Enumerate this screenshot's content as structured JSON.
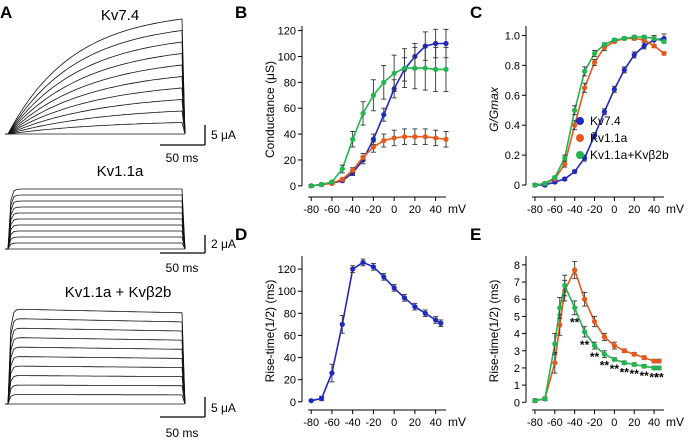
{
  "traces": {
    "A": {
      "label": "A",
      "title": "Kv7.4",
      "y_scale": "5 μA",
      "x_scale": "50 ms"
    },
    "A2": {
      "title": "Kv1.1a",
      "y_scale": "2 μA",
      "x_scale": "50 ms"
    },
    "A3": {
      "title": "Kv1.1a + Kvβ2b",
      "y_scale": "5 μA",
      "x_scale": "50 ms"
    }
  },
  "colors": {
    "Kv7.4": "#2028c0",
    "Kv1.1a": "#e8581a",
    "Kv1.1a+Kvb2b": "#22b550"
  },
  "chart_data": [
    {
      "panel": "B",
      "type": "line",
      "xlabel": "mV",
      "ylabel": "Conductance (μS)",
      "x": [
        -80,
        -70,
        -60,
        -50,
        -40,
        -30,
        -20,
        -10,
        0,
        10,
        20,
        30,
        40,
        50
      ],
      "xticks": [
        -80,
        -60,
        -40,
        -20,
        0,
        20,
        40
      ],
      "yticks": [
        0,
        20,
        40,
        60,
        80,
        100,
        120
      ],
      "xlim": [
        -85,
        50
      ],
      "ylim": [
        -4,
        122
      ],
      "series": [
        {
          "key": "Kv7.4",
          "values": [
            0,
            1,
            2,
            4,
            10,
            20,
            36,
            55,
            75,
            90,
            100,
            108,
            110,
            110
          ],
          "err": [
            1,
            1,
            1,
            1,
            2,
            3,
            4,
            5,
            7,
            9,
            10,
            11,
            11,
            11
          ]
        },
        {
          "key": "Kv1.1a",
          "values": [
            0,
            1,
            2,
            5,
            12,
            22,
            30,
            35,
            37,
            38,
            38,
            38,
            37,
            36
          ],
          "err": [
            1,
            1,
            1,
            1,
            2,
            3,
            4,
            5,
            6,
            6,
            6,
            6,
            6,
            6
          ]
        },
        {
          "key": "Kv1.1a+Kvb2b",
          "values": [
            0,
            1,
            3,
            13,
            36,
            56,
            70,
            80,
            87,
            91,
            91,
            91,
            90,
            90
          ],
          "err": [
            1,
            1,
            1,
            3,
            6,
            9,
            12,
            13,
            14,
            15,
            16,
            17,
            17,
            17
          ]
        }
      ]
    },
    {
      "panel": "C",
      "type": "line",
      "xlabel": "mV",
      "ylabel": "G/Gmax",
      "x": [
        -80,
        -70,
        -60,
        -50,
        -40,
        -30,
        -20,
        -10,
        0,
        10,
        20,
        30,
        40,
        50
      ],
      "xticks": [
        -80,
        -60,
        -40,
        -20,
        0,
        20,
        40
      ],
      "yticks": [
        0,
        0.2,
        0.4,
        0.6,
        0.8,
        1.0
      ],
      "ytick_labels": [
        "0",
        "0.2",
        "0.4",
        "0.6",
        "0.8",
        "1.0"
      ],
      "xlim": [
        -85,
        50
      ],
      "ylim": [
        -0.04,
        1.05
      ],
      "legend": [
        "Kv7.4",
        "Kv1.1a",
        "Kv1.1a+Kvβ2b"
      ],
      "series": [
        {
          "key": "Kv7.4",
          "values": [
            0,
            0,
            0.02,
            0.04,
            0.09,
            0.18,
            0.33,
            0.49,
            0.64,
            0.77,
            0.87,
            0.93,
            0.97,
            0.98
          ],
          "err": [
            0.01,
            0.01,
            0.01,
            0.01,
            0.01,
            0.02,
            0.02,
            0.02,
            0.02,
            0.02,
            0.02,
            0.02,
            0.03,
            0.03
          ]
        },
        {
          "key": "Kv1.1a",
          "values": [
            0,
            0.01,
            0.04,
            0.14,
            0.4,
            0.65,
            0.82,
            0.92,
            0.96,
            0.98,
            0.98,
            0.97,
            0.93,
            0.88
          ],
          "err": [
            0.01,
            0.01,
            0.01,
            0.02,
            0.03,
            0.03,
            0.02,
            0.02,
            0.01,
            0.01,
            0.01,
            0.01,
            0.01,
            0.01
          ]
        },
        {
          "key": "Kv1.1a+Kvb2b",
          "values": [
            0,
            0.01,
            0.05,
            0.18,
            0.5,
            0.76,
            0.88,
            0.94,
            0.97,
            0.98,
            0.99,
            0.99,
            0.98,
            0.96
          ],
          "err": [
            0.01,
            0.01,
            0.01,
            0.02,
            0.03,
            0.03,
            0.02,
            0.01,
            0.01,
            0.01,
            0.01,
            0.01,
            0.01,
            0.01
          ]
        }
      ]
    },
    {
      "panel": "D",
      "type": "line",
      "xlabel": "mV",
      "ylabel": "Rise-time(1/2) (ms)",
      "x": [
        -80,
        -70,
        -60,
        -50,
        -40,
        -30,
        -20,
        -10,
        0,
        10,
        20,
        30,
        40,
        45
      ],
      "xticks": [
        -80,
        -60,
        -40,
        -20,
        0,
        20,
        40
      ],
      "yticks": [
        0,
        20,
        40,
        60,
        80,
        100,
        120
      ],
      "xlim": [
        -85,
        50
      ],
      "ylim": [
        -2,
        130
      ],
      "series": [
        {
          "key": "Kv7.4",
          "values": [
            1,
            3,
            26,
            70,
            120,
            126,
            122,
            113,
            103,
            94,
            86,
            80,
            74,
            71
          ],
          "err": [
            1,
            2,
            8,
            8,
            3,
            3,
            3,
            3,
            3,
            3,
            3,
            3,
            3,
            3
          ]
        }
      ]
    },
    {
      "panel": "E",
      "type": "line",
      "xlabel": "mV",
      "ylabel": "Rise-time(1/2) (ms)",
      "x": [
        -80,
        -70,
        -60,
        -55,
        -50,
        -40,
        -30,
        -20,
        -10,
        0,
        10,
        20,
        30,
        40,
        45
      ],
      "xticks": [
        -80,
        -60,
        -40,
        -20,
        0,
        20,
        40
      ],
      "yticks": [
        0,
        1,
        2,
        3,
        4,
        5,
        6,
        7,
        8
      ],
      "xlim": [
        -85,
        50
      ],
      "ylim": [
        -0.1,
        8.4
      ],
      "series": [
        {
          "key": "Kv1.1a",
          "values": [
            0.1,
            0.2,
            2.3,
            4.5,
            6.5,
            7.7,
            6.0,
            4.7,
            3.8,
            3.3,
            3.0,
            2.8,
            2.6,
            2.4,
            2.4
          ],
          "err": [
            0.1,
            0.1,
            0.6,
            0.6,
            0.6,
            0.5,
            0.4,
            0.3,
            0.2,
            0.2,
            0.1,
            0.1,
            0.1,
            0.1,
            0.1
          ]
        },
        {
          "key": "Kv1.1a+Kvb2b",
          "values": [
            0.1,
            0.2,
            3.4,
            5.5,
            6.8,
            5.5,
            4.1,
            3.3,
            2.8,
            2.5,
            2.3,
            2.2,
            2.1,
            2.0,
            2.0
          ],
          "err": [
            0.1,
            0.1,
            0.6,
            0.6,
            0.6,
            0.4,
            0.3,
            0.2,
            0.2,
            0.1,
            0.1,
            0.1,
            0.1,
            0.1,
            0.1
          ]
        }
      ],
      "significance": {
        "symbol": "**",
        "x": [
          -40,
          -30,
          -20,
          -10,
          0,
          10,
          20,
          30,
          40,
          45
        ]
      }
    }
  ]
}
